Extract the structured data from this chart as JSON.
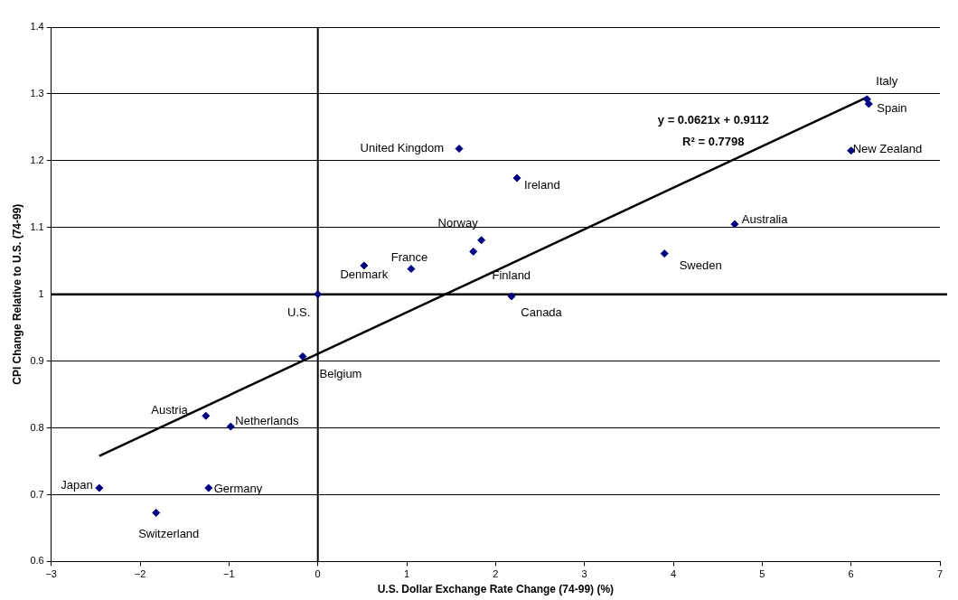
{
  "chart_data": {
    "type": "scatter",
    "xlabel": "U.S. Dollar Exchange Rate Change (74-99) (%)",
    "ylabel": "CPI Change Relative to U.S. (74-99)",
    "xlim": [
      -3,
      7
    ],
    "xticks": [
      {
        "value": -3,
        "label": "−3"
      },
      {
        "value": -2,
        "label": "−2"
      },
      {
        "value": -1,
        "label": "−1"
      },
      0,
      1,
      2,
      3,
      4,
      5,
      6,
      7
    ],
    "ylim": [
      0.6,
      1.4
    ],
    "yticks": [
      0.6,
      0.7,
      0.8,
      0.9,
      1,
      1.1,
      1.2,
      1.3,
      1.4
    ],
    "grid": "y",
    "legend": false,
    "series": [
      {
        "color": "#000080",
        "marker": "diamond",
        "x": [
          -2.46,
          -1.82,
          -1.23,
          -1.26,
          -0.98,
          -0.17,
          0,
          0.52,
          1.05,
          1.75,
          1.84,
          1.59,
          2.24,
          2.18,
          3.9,
          4.69,
          6.0,
          6.18,
          6.2
        ],
        "values": [
          0.71,
          0.673,
          0.71,
          0.818,
          0.802,
          0.907,
          1.0,
          1.043,
          1.038,
          1.064,
          1.081,
          1.218,
          1.174,
          0.997,
          1.061,
          1.105,
          1.215,
          1.292,
          1.285
        ],
        "value_labels": [
          "Japan",
          "Switzerland",
          "Germany",
          "Austria",
          "Netherlands",
          "Belgium",
          "U.S.",
          "Denmark",
          "France",
          "Finland",
          "Norway",
          "United Kingdom",
          "Ireland",
          "Canada",
          "Sweden",
          "Australia",
          "New Zealand",
          "Italy",
          "Spain"
        ]
      },
      {
        "type": "line",
        "color": "#000000",
        "marker": "none",
        "x": [
          -2.46,
          6.18
        ],
        "values": [
          0.758,
          1.295
        ]
      }
    ],
    "ref_lines": [
      {
        "axis": "x",
        "value": 0,
        "color": "#000000"
      },
      {
        "axis": "y",
        "value": 1,
        "color": "#000000"
      }
    ],
    "annotations": [
      "y = 0.0621x + 0.9112",
      "R² = 0.7798"
    ]
  }
}
